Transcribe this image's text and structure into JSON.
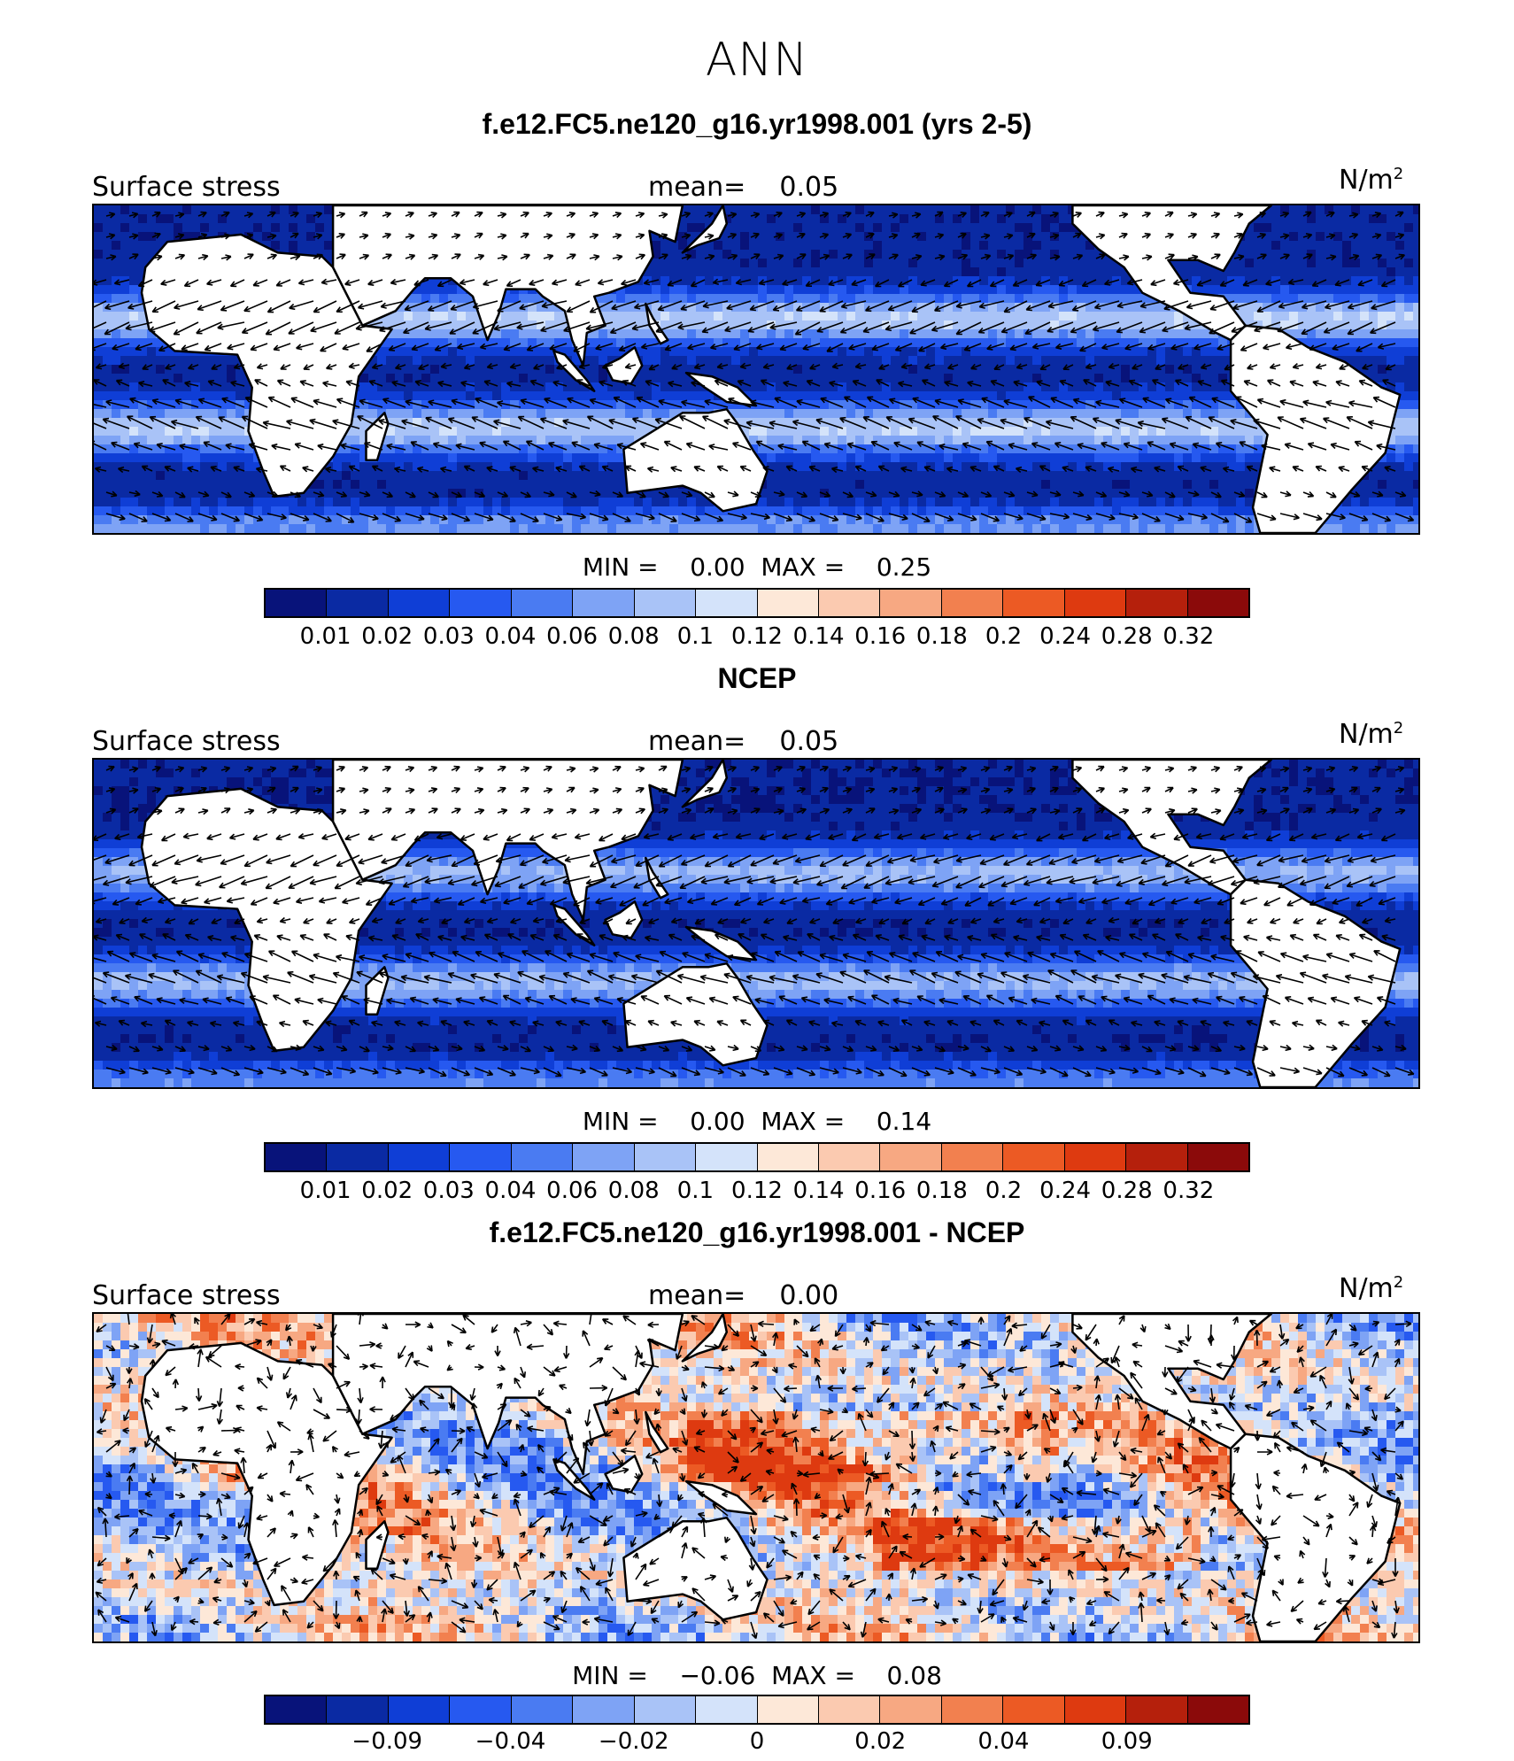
{
  "figure_title": "ANN",
  "colors_seq": [
    "#08137a",
    "#0a2aa3",
    "#0f3ed6",
    "#2659f0",
    "#4a7bf2",
    "#7ea3f5",
    "#a9c3f7",
    "#d4e3fa",
    "#fde8d8",
    "#fbcab0",
    "#f7a882",
    "#f2804f",
    "#ec5a24",
    "#de3a10",
    "#b5200c",
    "#8b0a0a"
  ],
  "colors_diff": [
    "#08137a",
    "#0a2aa3",
    "#0f3ed6",
    "#2659f0",
    "#4a7bf2",
    "#7ea3f5",
    "#a9c3f7",
    "#d4e3fa",
    "#fde8d8",
    "#fbcab0",
    "#f7a882",
    "#f2804f",
    "#ec5a24",
    "#de3a10",
    "#b5200c",
    "#8b0a0a"
  ],
  "panels": [
    {
      "title": "f.e12.FC5.ne120_g16.yr1998.001 (yrs 2-5)",
      "variable": "Surface stress",
      "mean_label": "mean=",
      "mean_value": "0.05",
      "units": "N/m",
      "units_sup": "2",
      "min_label": "MIN =",
      "min_value": "0.00",
      "max_label": "MAX =",
      "max_value": "0.25",
      "tick_labels": [
        "0.01",
        "0.02",
        "0.03",
        "0.04",
        "0.06",
        "0.08",
        "0.1",
        "0.12",
        "0.14",
        "0.16",
        "0.18",
        "0.2",
        "0.24",
        "0.28",
        "0.32"
      ]
    },
    {
      "title": "NCEP",
      "variable": "Surface stress",
      "mean_label": "mean=",
      "mean_value": "0.05",
      "units": "N/m",
      "units_sup": "2",
      "min_label": "MIN =",
      "min_value": "0.00",
      "max_label": "MAX =",
      "max_value": "0.14",
      "tick_labels": [
        "0.01",
        "0.02",
        "0.03",
        "0.04",
        "0.06",
        "0.08",
        "0.1",
        "0.12",
        "0.14",
        "0.16",
        "0.18",
        "0.2",
        "0.24",
        "0.28",
        "0.32"
      ]
    },
    {
      "title": "f.e12.FC5.ne120_g16.yr1998.001 - NCEP",
      "variable": "Surface stress",
      "mean_label": "mean=",
      "mean_value": "0.00",
      "units": "N/m",
      "units_sup": "2",
      "min_label": "MIN =",
      "min_value": "−0.06",
      "max_label": "MAX =",
      "max_value": "0.08",
      "tick_labels": [
        "−0.09",
        "−0.04",
        "−0.02",
        "0",
        "0.02",
        "0.04",
        "0.09"
      ]
    }
  ]
}
